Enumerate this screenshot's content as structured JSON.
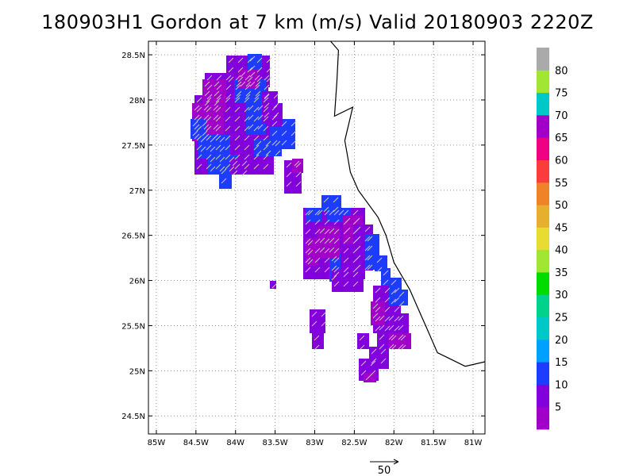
{
  "title": "180903H1 Gordon at 7 km (m/s) Valid 20180903 2220Z",
  "map": {
    "lon_ticks": [
      {
        "value": -85,
        "label": "85W"
      },
      {
        "value": -84.5,
        "label": "84.5W"
      },
      {
        "value": -84,
        "label": "84W"
      },
      {
        "value": -83.5,
        "label": "83.5W"
      },
      {
        "value": -83,
        "label": "83W"
      },
      {
        "value": -82.5,
        "label": "82.5W"
      },
      {
        "value": -82,
        "label": "82W"
      },
      {
        "value": -81.5,
        "label": "81.5W"
      },
      {
        "value": -81,
        "label": "81W"
      }
    ],
    "lat_ticks": [
      {
        "value": 24.5,
        "label": "24.5N"
      },
      {
        "value": 25,
        "label": "25N"
      },
      {
        "value": 25.5,
        "label": "25.5N"
      },
      {
        "value": 26,
        "label": "26N"
      },
      {
        "value": 26.5,
        "label": "26.5N"
      },
      {
        "value": 27,
        "label": "27N"
      },
      {
        "value": 27.5,
        "label": "27.5N"
      },
      {
        "value": 28,
        "label": "28N"
      },
      {
        "value": 28.5,
        "label": "28.5N"
      }
    ],
    "coastline_color": "#000000",
    "grid": true
  },
  "colorbar": {
    "labels": [
      "5",
      "10",
      "15",
      "20",
      "25",
      "30",
      "35",
      "40",
      "45",
      "50",
      "55",
      "60",
      "65",
      "70",
      "75",
      "80"
    ],
    "colors": [
      "#a000c8",
      "#8200dc",
      "#1e3cff",
      "#00a0ff",
      "#00c8c8",
      "#00d28c",
      "#00dc00",
      "#a0e632",
      "#e6dc32",
      "#e6af2d",
      "#f08228",
      "#fa3c3c",
      "#f00082",
      "#a000c8",
      "#00c8c8",
      "#a0e632",
      "#aaaaaa"
    ]
  },
  "scale_arrow": {
    "label": "50"
  }
}
